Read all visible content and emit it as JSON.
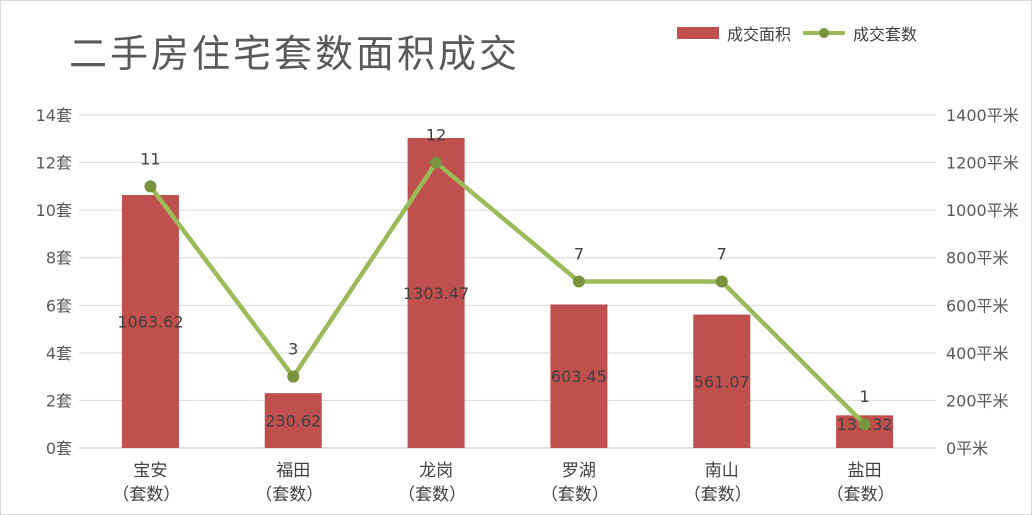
{
  "chart_data": {
    "type": "bar+line",
    "title": "二手房住宅套数面积成交",
    "categories": [
      "宝安",
      "福田",
      "龙岗",
      "罗湖",
      "南山",
      "盐田"
    ],
    "category_sub": "（套数）",
    "series": [
      {
        "name": "成交面积",
        "kind": "bar",
        "axis": "right",
        "color": "#c0504d",
        "values": [
          1063.62,
          230.62,
          1303.47,
          603.45,
          561.07,
          137.32
        ],
        "labels": [
          "1063.62",
          "230.62",
          "1303.47",
          "603.45",
          "561.07",
          "137.32"
        ]
      },
      {
        "name": "成交套数",
        "kind": "line",
        "axis": "left",
        "color": "#9bbb59",
        "marker_color": "#77933c",
        "values": [
          11,
          3,
          12,
          7,
          7,
          1
        ],
        "labels": [
          "11",
          "3",
          "12",
          "7",
          "7",
          "1"
        ]
      }
    ],
    "y_left": {
      "min": 0,
      "max": 14,
      "step": 2,
      "ticks": [
        "0套",
        "2套",
        "4套",
        "6套",
        "8套",
        "10套",
        "12套",
        "14套"
      ]
    },
    "y_right": {
      "min": 0,
      "max": 1400,
      "step": 200,
      "ticks": [
        "0平米",
        "200平米",
        "400平米",
        "600平米",
        "800平米",
        "1000平米",
        "1200平米",
        "1400平米"
      ]
    },
    "grid": true,
    "legend": "top-right"
  }
}
